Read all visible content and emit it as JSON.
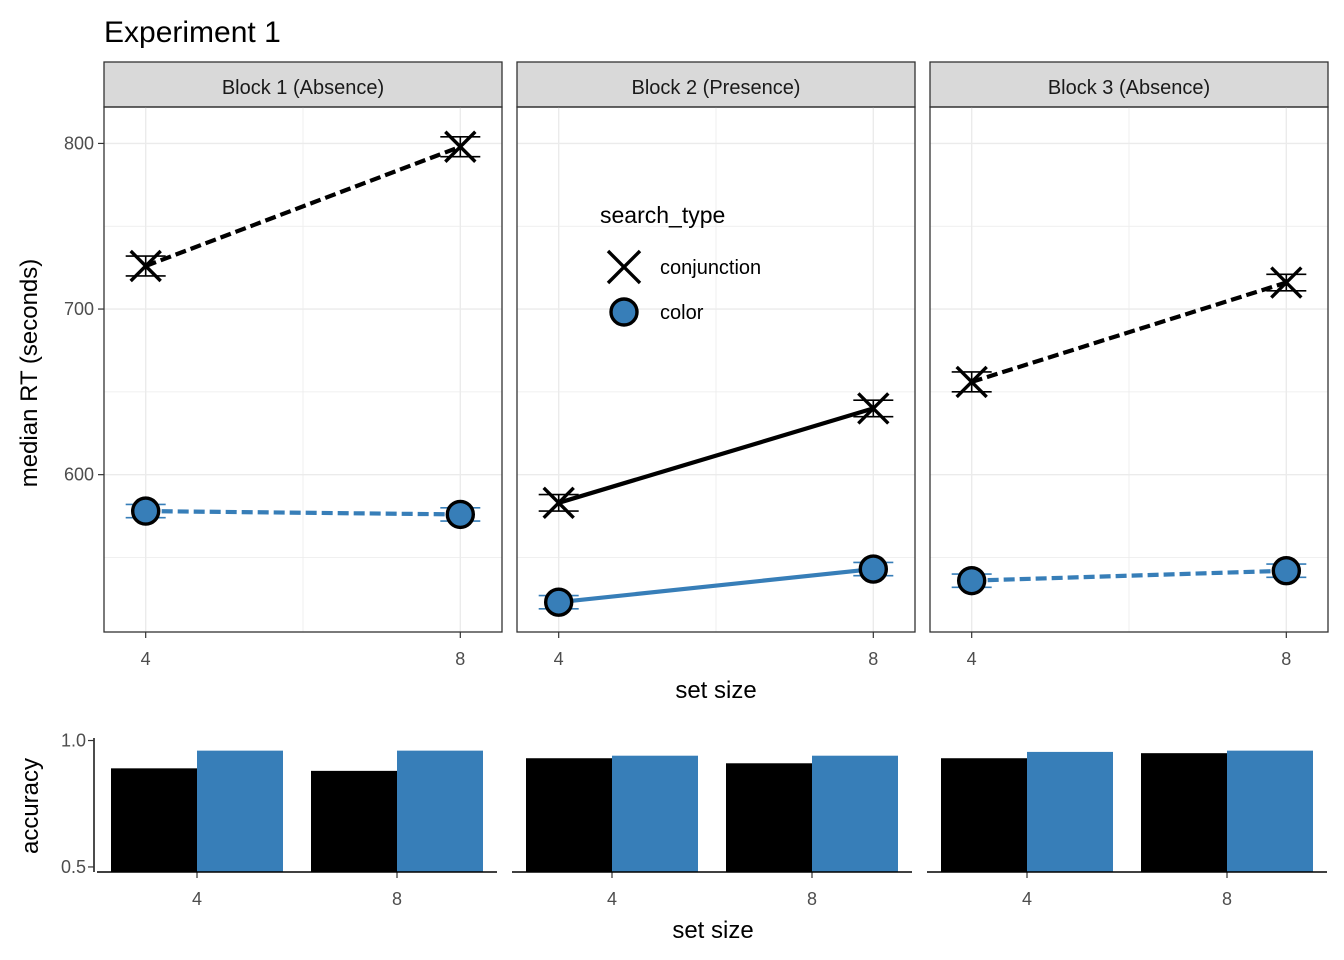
{
  "title": "Experiment 1",
  "colors": {
    "conjunction": "#000000",
    "color": "#377EB8",
    "strip_bg": "#D9D9D9",
    "grid": "#EBEBEB",
    "axis_text": "#4D4D4D"
  },
  "legend": {
    "title": "search_type",
    "items": [
      "conjunction",
      "color"
    ]
  },
  "chart_data": [
    {
      "type": "line",
      "facet_labels": [
        "Block 1 (Absence)",
        "Block 2 (Presence)",
        "Block 3 (Absence)"
      ],
      "xlabel": "set size",
      "ylabel": "median RT (seconds)",
      "x_ticks": [
        "4",
        "8"
      ],
      "y_ticks": [
        "600",
        "700",
        "800"
      ],
      "xlim": [
        3.47,
        8.53
      ],
      "ylim": [
        505,
        822
      ],
      "grid": true,
      "legend_position": "inside second panel, top-left",
      "facets": [
        {
          "label": "Block 1 (Absence)",
          "linetype": "dashed",
          "series": [
            {
              "name": "conjunction",
              "x": [
                4,
                8
              ],
              "y": [
                726,
                798
              ],
              "err": [
                6,
                6
              ]
            },
            {
              "name": "color",
              "x": [
                4,
                8
              ],
              "y": [
                578,
                576
              ],
              "err": [
                4,
                4
              ]
            }
          ]
        },
        {
          "label": "Block 2 (Presence)",
          "linetype": "solid",
          "series": [
            {
              "name": "conjunction",
              "x": [
                4,
                8
              ],
              "y": [
                583,
                640
              ],
              "err": [
                5,
                5
              ]
            },
            {
              "name": "color",
              "x": [
                4,
                8
              ],
              "y": [
                523,
                543
              ],
              "err": [
                4,
                4
              ]
            }
          ]
        },
        {
          "label": "Block 3 (Absence)",
          "linetype": "dashed",
          "series": [
            {
              "name": "conjunction",
              "x": [
                4,
                8
              ],
              "y": [
                656,
                716
              ],
              "err": [
                6,
                5
              ]
            },
            {
              "name": "color",
              "x": [
                4,
                8
              ],
              "y": [
                536,
                542
              ],
              "err": [
                4,
                4
              ]
            }
          ]
        }
      ]
    },
    {
      "type": "bar",
      "xlabel": "set size",
      "ylabel": "accuracy",
      "categories": [
        "4",
        "8"
      ],
      "y_ticks": [
        "0.5",
        "1.0"
      ],
      "ylim": [
        0.48,
        1.01
      ],
      "grid": false,
      "facets": [
        {
          "series": [
            {
              "name": "conjunction",
              "values": [
                0.89,
                0.88
              ]
            },
            {
              "name": "color",
              "values": [
                0.96,
                0.96
              ]
            }
          ]
        },
        {
          "series": [
            {
              "name": "conjunction",
              "values": [
                0.93,
                0.91
              ]
            },
            {
              "name": "color",
              "values": [
                0.94,
                0.94
              ]
            }
          ]
        },
        {
          "series": [
            {
              "name": "conjunction",
              "values": [
                0.93,
                0.95
              ]
            },
            {
              "name": "color",
              "values": [
                0.955,
                0.96
              ]
            }
          ]
        }
      ]
    }
  ]
}
